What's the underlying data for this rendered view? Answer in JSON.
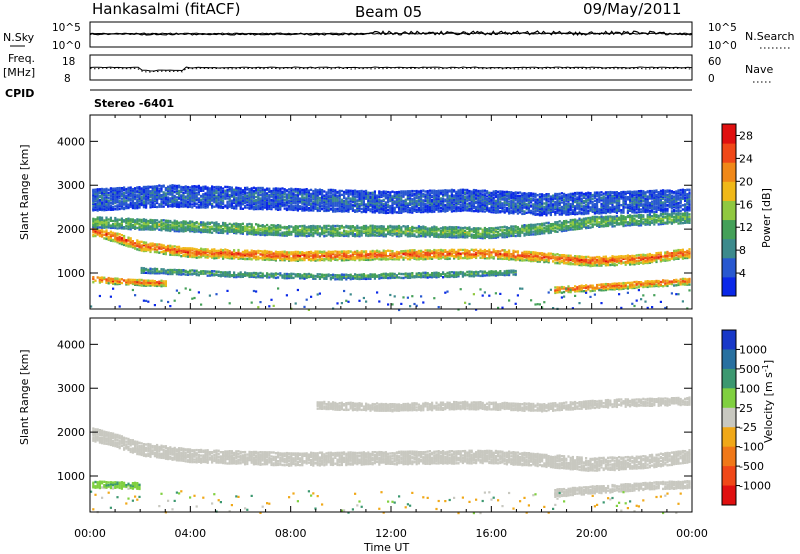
{
  "header": {
    "station": "Hankasalmi (fitACF)",
    "beam": "Beam 05",
    "date": "09/May/2011"
  },
  "top_panels": {
    "nsky_label": "N.Sky",
    "nsky_ticks": [
      "10^5",
      "10^0"
    ],
    "nsearch_label": "N.Search",
    "nsearch_ticks": [
      "10^5",
      "10^0"
    ],
    "freq_label_1": "Freq.",
    "freq_label_2": "[MHz]",
    "freq_ticks": [
      "18",
      "8"
    ],
    "nave_label": "Nave",
    "nave_ticks": [
      "60",
      "0"
    ],
    "cpid_label": "CPID",
    "cpid_value": "Stereo -6401"
  },
  "chart_data": [
    {
      "type": "heatmap",
      "title": "",
      "xlabel": "",
      "ylabel": "Slant Range [km]",
      "xlim": [
        0,
        24
      ],
      "ylim": [
        180,
        4600
      ],
      "yticks": [
        1000,
        2000,
        3000,
        4000
      ],
      "colorbar": {
        "label": "Power [dB]",
        "ticks": [
          4,
          8,
          12,
          16,
          20,
          24,
          28
        ],
        "range": [
          0,
          30
        ],
        "colors": [
          "#0a28e8",
          "#2858d0",
          "#3c8a8c",
          "#44a058",
          "#90c840",
          "#f0b818",
          "#f08818",
          "#f04818",
          "#e01010"
        ]
      },
      "bands": [
        {
          "desc": "main F echo",
          "points": [
            [
              0,
              2000
            ],
            [
              1,
              1850
            ],
            [
              2,
              1650
            ],
            [
              4,
              1500
            ],
            [
              8,
              1420
            ],
            [
              12,
              1450
            ],
            [
              16,
              1480
            ],
            [
              18,
              1400
            ],
            [
              20,
              1300
            ],
            [
              22,
              1350
            ],
            [
              24,
              1500
            ]
          ],
          "width": 220,
          "power": 26
        },
        {
          "desc": "early near echo",
          "points": [
            [
              0,
              900
            ],
            [
              1,
              850
            ],
            [
              2,
              820
            ],
            [
              3,
              800
            ]
          ],
          "width": 140,
          "power": 25
        },
        {
          "desc": "lower green band",
          "points": [
            [
              2,
              1100
            ],
            [
              6,
              1000
            ],
            [
              10,
              950
            ],
            [
              14,
              1000
            ],
            [
              17,
              1050
            ]
          ],
          "width": 120,
          "power": 12
        },
        {
          "desc": "late near echo",
          "points": [
            [
              18.5,
              650
            ],
            [
              20,
              700
            ],
            [
              22,
              780
            ],
            [
              24,
              850
            ]
          ],
          "width": 150,
          "power": 25
        },
        {
          "desc": "upper scatter",
          "points": [
            [
              0,
              2700
            ],
            [
              3,
              2800
            ],
            [
              6,
              2750
            ],
            [
              9,
              2700
            ],
            [
              12,
              2650
            ],
            [
              15,
              2700
            ],
            [
              18,
              2600
            ],
            [
              21,
              2650
            ],
            [
              24,
              2700
            ]
          ],
          "width": 500,
          "power": 6
        },
        {
          "desc": "upper green",
          "points": [
            [
              0,
              2200
            ],
            [
              4,
              2100
            ],
            [
              8,
              2000
            ],
            [
              12,
              2000
            ],
            [
              16,
              1950
            ],
            [
              18,
              2050
            ],
            [
              20,
              2200
            ],
            [
              24,
              2300
            ]
          ],
          "width": 250,
          "power": 14
        }
      ]
    },
    {
      "type": "heatmap",
      "title": "",
      "xlabel": "Time UT",
      "ylabel": "Slant Range [km]",
      "xlim": [
        0,
        24
      ],
      "ylim": [
        180,
        4600
      ],
      "xticks": [
        "00:00",
        "04:00",
        "08:00",
        "12:00",
        "16:00",
        "20:00",
        "00:00"
      ],
      "yticks": [
        1000,
        2000,
        3000,
        4000
      ],
      "colorbar": {
        "label": "Velocity [m s^-1]",
        "ticks": [
          "1000",
          "500",
          "100",
          "25",
          "-25",
          "-100",
          "-500",
          "-1000"
        ],
        "colors": [
          "#1838c8",
          "#2870a0",
          "#3c9870",
          "#80d040",
          "#c8c8c0",
          "#f0a818",
          "#f07818",
          "#f04818",
          "#e01010"
        ]
      },
      "bands": [
        {
          "desc": "grey main",
          "points": [
            [
              0,
              2000
            ],
            [
              1,
              1850
            ],
            [
              2,
              1650
            ],
            [
              4,
              1500
            ],
            [
              8,
              1420
            ],
            [
              12,
              1450
            ],
            [
              16,
              1480
            ],
            [
              18,
              1400
            ],
            [
              20,
              1300
            ],
            [
              22,
              1350
            ],
            [
              24,
              1500
            ]
          ],
          "width": 300,
          "velocity": 0
        },
        {
          "desc": "grey upper",
          "points": [
            [
              9,
              2650
            ],
            [
              12,
              2600
            ],
            [
              15,
              2650
            ],
            [
              18,
              2600
            ],
            [
              21,
              2700
            ],
            [
              24,
              2750
            ]
          ],
          "width": 180,
          "velocity": 0
        },
        {
          "desc": "green early",
          "points": [
            [
              0,
              850
            ],
            [
              1,
              830
            ],
            [
              2,
              820
            ]
          ],
          "width": 160,
          "velocity": 60
        },
        {
          "desc": "late grey",
          "points": [
            [
              18.5,
              650
            ],
            [
              20,
              720
            ],
            [
              22,
              800
            ],
            [
              24,
              850
            ]
          ],
          "width": 180,
          "velocity": 0
        }
      ]
    }
  ]
}
